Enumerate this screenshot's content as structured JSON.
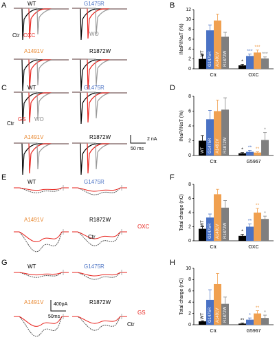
{
  "panel_letters": [
    "A",
    "B",
    "C",
    "D",
    "E",
    "F",
    "G",
    "H"
  ],
  "trace_panels": [
    {
      "labels": [
        "WT",
        "G1475R",
        "Ctr",
        "OXC",
        "WO",
        "A1491V",
        "R1872W"
      ]
    },
    {
      "labels": [
        "WT",
        "G1475R",
        "Ctr",
        "GS",
        "WO",
        "A1491V",
        "R1872W"
      ],
      "scale_labels": [
        "2 nA",
        "50 ms"
      ]
    },
    {
      "labels": [
        "WT",
        "G1475R",
        "A1491V",
        "R1872W",
        "OXC",
        "Ctr"
      ]
    },
    {
      "labels": [
        "WT",
        "G1475R",
        "A1491V",
        "R1872W",
        "GS",
        "Ctr"
      ],
      "scale_labels": [
        "400pA",
        "50ms"
      ]
    }
  ],
  "chart_data": [
    {
      "type": "bar",
      "y_label": "INaP/INaT (%)",
      "categories": [
        "Ctr.",
        "OXC"
      ],
      "series": [
        {
          "name": "WT",
          "color": "#000000",
          "values": [
            2.0,
            0.7
          ],
          "errors": [
            0.8,
            0.2
          ]
        },
        {
          "name": "G1475R",
          "color": "#4a72c4",
          "values": [
            7.8,
            2.6
          ],
          "errors": [
            1.1,
            0.4
          ]
        },
        {
          "name": "A1491V",
          "color": "#f0a050",
          "values": [
            9.8,
            3.3
          ],
          "errors": [
            1.3,
            0.5
          ]
        },
        {
          "name": "R1872W",
          "color": "#7f7f7f",
          "values": [
            6.5,
            2.1
          ],
          "errors": [
            0.9,
            0.3
          ]
        }
      ],
      "annotations": [
        "*",
        "***",
        "***",
        "***"
      ],
      "ylim": [
        0,
        12
      ],
      "yticks": [
        0,
        2,
        4,
        6,
        8,
        10,
        12
      ]
    },
    {
      "type": "bar",
      "y_label": "INaP/INaT (%)",
      "categories": [
        "Ctr.",
        "G5967"
      ],
      "series": [
        {
          "name": "WT",
          "color": "#000000",
          "values": [
            2.0,
            0.3
          ],
          "errors": [
            0.7,
            0.1
          ]
        },
        {
          "name": "G1475R",
          "color": "#4a72c4",
          "values": [
            4.9,
            0.5
          ],
          "errors": [
            1.2,
            0.2
          ]
        },
        {
          "name": "A1491V",
          "color": "#f0a050",
          "values": [
            6.0,
            0.4
          ],
          "errors": [
            1.5,
            0.1
          ]
        },
        {
          "name": "R1872W",
          "color": "#7f7f7f",
          "values": [
            6.2,
            2.1
          ],
          "errors": [
            1.6,
            1.0
          ]
        }
      ],
      "annotations": [
        "*",
        "**",
        "**",
        "*"
      ],
      "ylim": [
        0,
        8
      ],
      "yticks": [
        0,
        2,
        4,
        6,
        8
      ]
    },
    {
      "type": "bar",
      "y_label": "Total charge (nC)",
      "categories": [
        "Ctr.",
        "OXC"
      ],
      "series": [
        {
          "name": "WT",
          "color": "#000000",
          "values": [
            1.7,
            0.7
          ],
          "errors": [
            0.3,
            0.2
          ]
        },
        {
          "name": "G1475R",
          "color": "#4a72c4",
          "values": [
            3.3,
            2.0
          ],
          "errors": [
            0.5,
            0.4
          ]
        },
        {
          "name": "A1491V",
          "color": "#f0a050",
          "values": [
            6.6,
            4.0
          ],
          "errors": [
            0.7,
            0.6
          ]
        },
        {
          "name": "R1872W",
          "color": "#7f7f7f",
          "values": [
            4.7,
            3.1
          ],
          "errors": [
            1.0,
            0.4
          ]
        }
      ],
      "annotations": [
        "*",
        "**",
        "**",
        "*"
      ],
      "ylim": [
        0,
        8
      ],
      "yticks": [
        0,
        2,
        4,
        6,
        8
      ]
    },
    {
      "type": "bar",
      "y_label": "Total charge (nC)",
      "categories": [
        "Ctr.",
        "G5967"
      ],
      "series": [
        {
          "name": "WT",
          "color": "#000000",
          "values": [
            0.6,
            0.2
          ],
          "errors": [
            0.1,
            0.1
          ]
        },
        {
          "name": "G1475R",
          "color": "#4a72c4",
          "values": [
            4.4,
            0.9
          ],
          "errors": [
            1.8,
            0.3
          ]
        },
        {
          "name": "A1491V",
          "color": "#f0a050",
          "values": [
            7.2,
            2.0
          ],
          "errors": [
            1.9,
            0.5
          ]
        },
        {
          "name": "R1872W",
          "color": "#7f7f7f",
          "values": [
            3.7,
            1.2
          ],
          "errors": [
            1.2,
            0.5
          ]
        }
      ],
      "annotations": [
        "**",
        "*",
        "**",
        "*"
      ],
      "ylim": [
        0,
        10
      ],
      "yticks": [
        0,
        2,
        4,
        6,
        8,
        10
      ]
    }
  ]
}
